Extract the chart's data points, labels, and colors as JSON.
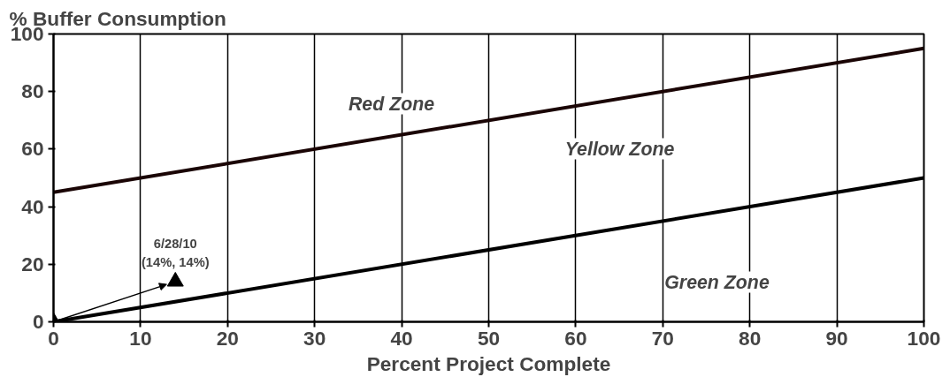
{
  "chart_data": {
    "type": "line",
    "ylabel": "% Buffer Consumption",
    "xlabel": "Percent Project Complete",
    "series": [
      {
        "x": [
          0,
          100
        ],
        "values": [
          45,
          95
        ],
        "color": "#1a0505"
      },
      {
        "x": [
          0,
          100
        ],
        "values": [
          0,
          50
        ],
        "color": "#000000"
      },
      {
        "type": "scatter",
        "x": [
          0,
          14
        ],
        "values": [
          0,
          14
        ],
        "color": "#000000",
        "marker": "triangle"
      }
    ],
    "xlim": [
      0,
      100
    ],
    "ylim": [
      0,
      100
    ],
    "xticks": [
      0,
      10,
      20,
      30,
      40,
      50,
      60,
      70,
      80,
      90,
      100
    ],
    "yticks": [
      0,
      20,
      40,
      60,
      80,
      100
    ],
    "grid": "x",
    "annotations": [
      "Red Zone",
      "Yellow Zone",
      "Green Zone",
      {
        "text": "6/28/10\n(14%, 14%)",
        "x": 14,
        "y": 14
      }
    ]
  }
}
